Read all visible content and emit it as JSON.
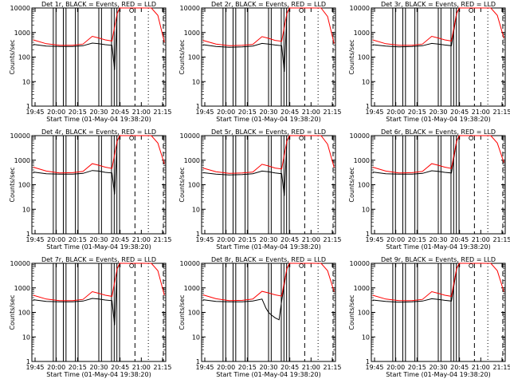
{
  "chart_data": [
    {
      "type": "line",
      "title": "Det 1r, BLACK = Events, RED = LLD",
      "xlabel": "Start Time (01-May-04 19:38:20)",
      "ylabel": "Counts/sec",
      "x_ticks": [
        "19:45",
        "20:00",
        "20:15",
        "20:30",
        "20:45",
        "21:00",
        "21:15"
      ],
      "y_ticks": [
        "1",
        "10",
        "100",
        "1000",
        "10000"
      ],
      "ylim": [
        1,
        10000
      ],
      "y_scale": "log",
      "series": [
        {
          "name": "BLACK = Events",
          "color": "#000000",
          "x": [
            0,
            0.1,
            0.2,
            0.3,
            0.38,
            0.45,
            0.5,
            0.55,
            0.6,
            0.62,
            0.64,
            0.66,
            0.68,
            0.7,
            0.72,
            0.74
          ],
          "y": [
            330,
            280,
            270,
            270,
            290,
            370,
            350,
            320,
            300,
            30,
            6000,
            10000,
            10000,
            null,
            null,
            null
          ]
        },
        {
          "name": "RED = LLD",
          "color": "#ff0000",
          "x": [
            0,
            0.1,
            0.2,
            0.3,
            0.38,
            0.45,
            0.5,
            0.55,
            0.6,
            0.64,
            0.66,
            0.68,
            0.7,
            0.9,
            0.95,
            1.0
          ],
          "y": [
            500,
            350,
            300,
            300,
            340,
            700,
            600,
            500,
            450,
            6000,
            10000,
            10000,
            10000,
            10000,
            5000,
            400
          ]
        }
      ]
    },
    {
      "type": "line",
      "title": "Det 2r, BLACK = Events, RED = LLD",
      "xlabel": "Start Time (01-May-04 19:38:20)",
      "ylabel": "Counts/sec",
      "x_ticks": [
        "19:45",
        "20:00",
        "20:15",
        "20:30",
        "20:45",
        "21:00",
        "21:15"
      ],
      "y_ticks": [
        "1",
        "10",
        "100",
        "1000",
        "10000"
      ],
      "ylim": [
        1,
        10000
      ],
      "y_scale": "log",
      "series": [
        {
          "name": "BLACK = Events",
          "color": "#000000",
          "x": [
            0,
            0.1,
            0.2,
            0.3,
            0.38,
            0.45,
            0.5,
            0.55,
            0.6,
            0.62,
            0.64,
            0.66,
            0.68,
            0.7
          ],
          "y": [
            320,
            270,
            250,
            260,
            280,
            360,
            340,
            310,
            290,
            25,
            6000,
            10000,
            10000,
            null
          ]
        },
        {
          "name": "RED = LLD",
          "color": "#ff0000",
          "x": [
            0,
            0.1,
            0.2,
            0.3,
            0.38,
            0.45,
            0.5,
            0.55,
            0.6,
            0.64,
            0.66,
            0.68,
            0.7,
            0.9,
            0.95,
            1.0
          ],
          "y": [
            480,
            340,
            290,
            300,
            330,
            680,
            580,
            480,
            440,
            6000,
            10000,
            10000,
            10000,
            10000,
            4500,
            350
          ]
        }
      ]
    },
    {
      "type": "line",
      "title": "Det 3r, BLACK = Events, RED = LLD",
      "xlabel": "Start Time (01-May-04 19:38:20)",
      "ylabel": "Counts/sec",
      "x_ticks": [
        "19:45",
        "20:00",
        "20:15",
        "20:30",
        "20:45",
        "21:00",
        "21:15"
      ],
      "y_ticks": [
        "1",
        "10",
        "100",
        "1000",
        "10000"
      ],
      "ylim": [
        1,
        10000
      ],
      "y_scale": "log",
      "series": [
        {
          "name": "BLACK = Events",
          "color": "#000000",
          "x": [
            0,
            0.1,
            0.2,
            0.3,
            0.38,
            0.45,
            0.5,
            0.55,
            0.6,
            0.64,
            0.66
          ],
          "y": [
            320,
            280,
            260,
            270,
            290,
            360,
            340,
            310,
            290,
            6000,
            10000
          ]
        },
        {
          "name": "RED = LLD",
          "color": "#ff0000",
          "x": [
            0,
            0.1,
            0.2,
            0.3,
            0.38,
            0.45,
            0.5,
            0.55,
            0.6,
            0.64,
            0.66,
            0.68,
            0.7,
            0.9,
            0.95,
            1.0
          ],
          "y": [
            500,
            350,
            300,
            300,
            340,
            700,
            600,
            500,
            450,
            6000,
            10000,
            10000,
            10000,
            10000,
            5000,
            600
          ]
        }
      ]
    },
    {
      "type": "line",
      "title": "Det 4r, BLACK = Events, RED = LLD",
      "xlabel": "Start Time (01-May-04 19:38:20)",
      "ylabel": "Counts/sec",
      "x_ticks": [
        "19:45",
        "20:00",
        "20:15",
        "20:30",
        "20:45",
        "21:00",
        "21:15"
      ],
      "y_ticks": [
        "1",
        "10",
        "100",
        "1000",
        "10000"
      ],
      "ylim": [
        1,
        10000
      ],
      "y_scale": "log",
      "series": [
        {
          "name": "BLACK = Events",
          "color": "#000000",
          "x": [
            0,
            0.1,
            0.2,
            0.3,
            0.38,
            0.45,
            0.5,
            0.55,
            0.6,
            0.62,
            0.64,
            0.66
          ],
          "y": [
            330,
            280,
            270,
            270,
            290,
            380,
            360,
            320,
            300,
            40,
            6000,
            10000
          ]
        },
        {
          "name": "RED = LLD",
          "color": "#ff0000",
          "x": [
            0,
            0.1,
            0.2,
            0.3,
            0.38,
            0.45,
            0.5,
            0.55,
            0.6,
            0.64,
            0.66,
            0.68,
            0.7,
            0.9,
            0.95,
            1.0
          ],
          "y": [
            520,
            360,
            300,
            310,
            350,
            720,
            620,
            520,
            460,
            6000,
            10000,
            10000,
            10000,
            10000,
            5000,
            700
          ]
        }
      ]
    },
    {
      "type": "line",
      "title": "Det 5r, BLACK = Events, RED = LLD",
      "xlabel": "Start Time (01-May-04 19:38:20)",
      "ylabel": "Counts/sec",
      "x_ticks": [
        "19:45",
        "20:00",
        "20:15",
        "20:30",
        "20:45",
        "21:00",
        "21:15"
      ],
      "y_ticks": [
        "1",
        "10",
        "100",
        "1000",
        "10000"
      ],
      "ylim": [
        1,
        10000
      ],
      "y_scale": "log",
      "series": [
        {
          "name": "BLACK = Events",
          "color": "#000000",
          "x": [
            0,
            0.1,
            0.2,
            0.3,
            0.38,
            0.45,
            0.5,
            0.55,
            0.6,
            0.62,
            0.64,
            0.66
          ],
          "y": [
            310,
            270,
            250,
            260,
            280,
            360,
            340,
            300,
            280,
            35,
            6000,
            10000
          ]
        },
        {
          "name": "RED = LLD",
          "color": "#ff0000",
          "x": [
            0,
            0.1,
            0.2,
            0.3,
            0.38,
            0.45,
            0.5,
            0.55,
            0.6,
            0.64,
            0.66,
            0.68,
            0.7,
            0.9,
            0.95,
            1.0
          ],
          "y": [
            480,
            340,
            290,
            300,
            330,
            680,
            580,
            480,
            440,
            6000,
            10000,
            10000,
            10000,
            10000,
            4500,
            500
          ]
        }
      ]
    },
    {
      "type": "line",
      "title": "Det 6r, BLACK = Events, RED = LLD",
      "xlabel": "Start Time (01-May-04 19:38:20)",
      "ylabel": "Counts/sec",
      "x_ticks": [
        "19:45",
        "20:00",
        "20:15",
        "20:30",
        "20:45",
        "21:00",
        "21:15"
      ],
      "y_ticks": [
        "1",
        "10",
        "100",
        "1000",
        "10000"
      ],
      "ylim": [
        1,
        10000
      ],
      "y_scale": "log",
      "series": [
        {
          "name": "BLACK = Events",
          "color": "#000000",
          "x": [
            0,
            0.1,
            0.2,
            0.3,
            0.38,
            0.45,
            0.5,
            0.55,
            0.6,
            0.64,
            0.66
          ],
          "y": [
            330,
            280,
            270,
            270,
            290,
            370,
            350,
            320,
            300,
            6000,
            10000
          ]
        },
        {
          "name": "RED = LLD",
          "color": "#ff0000",
          "x": [
            0,
            0.1,
            0.2,
            0.3,
            0.38,
            0.45,
            0.5,
            0.55,
            0.6,
            0.64,
            0.66,
            0.68,
            0.7,
            0.9,
            0.95,
            1.0
          ],
          "y": [
            520,
            360,
            300,
            310,
            350,
            720,
            620,
            520,
            460,
            6000,
            10000,
            10000,
            10000,
            10000,
            5000,
            800
          ]
        }
      ]
    },
    {
      "type": "line",
      "title": "Det 7r, BLACK = Events, RED = LLD",
      "xlabel": "Start Time (01-May-04 19:38:20)",
      "ylabel": "Counts/sec",
      "x_ticks": [
        "19:45",
        "20:00",
        "20:15",
        "20:30",
        "20:45",
        "21:00",
        "21:15"
      ],
      "y_ticks": [
        "1",
        "10",
        "100",
        "1000",
        "10000"
      ],
      "ylim": [
        1,
        10000
      ],
      "y_scale": "log",
      "series": [
        {
          "name": "BLACK = Events",
          "color": "#000000",
          "x": [
            0,
            0.1,
            0.2,
            0.3,
            0.38,
            0.45,
            0.5,
            0.55,
            0.6,
            0.62,
            0.64,
            0.66
          ],
          "y": [
            330,
            280,
            270,
            270,
            290,
            370,
            350,
            320,
            300,
            30,
            6000,
            10000
          ]
        },
        {
          "name": "RED = LLD",
          "color": "#ff0000",
          "x": [
            0,
            0.1,
            0.2,
            0.3,
            0.38,
            0.45,
            0.5,
            0.55,
            0.6,
            0.64,
            0.66,
            0.68,
            0.7,
            0.9,
            0.95,
            1.0
          ],
          "y": [
            500,
            350,
            300,
            300,
            340,
            700,
            600,
            500,
            450,
            6000,
            10000,
            10000,
            10000,
            10000,
            5000,
            500
          ]
        }
      ]
    },
    {
      "type": "line",
      "title": "Det 8r, BLACK = Events, RED = LLD",
      "xlabel": "Start Time (01-May-04 19:38:20)",
      "ylabel": "Counts/sec",
      "x_ticks": [
        "19:45",
        "20:00",
        "20:15",
        "20:30",
        "20:45",
        "21:00",
        "21:15"
      ],
      "y_ticks": [
        "1",
        "10",
        "100",
        "1000",
        "10000"
      ],
      "ylim": [
        1,
        10000
      ],
      "y_scale": "log",
      "series": [
        {
          "name": "BLACK = Events",
          "color": "#000000",
          "x": [
            0,
            0.1,
            0.2,
            0.3,
            0.38,
            0.45,
            0.48,
            0.5,
            0.52,
            0.55,
            0.58,
            0.6,
            0.64,
            0.66
          ],
          "y": [
            330,
            280,
            270,
            270,
            290,
            350,
            150,
            100,
            80,
            60,
            50,
            300,
            6000,
            10000
          ]
        },
        {
          "name": "RED = LLD",
          "color": "#ff0000",
          "x": [
            0,
            0.1,
            0.2,
            0.3,
            0.38,
            0.45,
            0.5,
            0.55,
            0.6,
            0.64,
            0.66,
            0.68,
            0.7,
            0.9,
            0.95,
            1.0
          ],
          "y": [
            520,
            360,
            300,
            310,
            350,
            720,
            620,
            520,
            460,
            6000,
            10000,
            10000,
            10000,
            10000,
            5000,
            700
          ]
        }
      ]
    },
    {
      "type": "line",
      "title": "Det 9r, BLACK = Events, RED = LLD",
      "xlabel": "Start Time (01-May-04 19:38:20)",
      "ylabel": "Counts/sec",
      "x_ticks": [
        "19:45",
        "20:00",
        "20:15",
        "20:30",
        "20:45",
        "21:00",
        "21:15"
      ],
      "y_ticks": [
        "1",
        "10",
        "100",
        "1000",
        "10000"
      ],
      "ylim": [
        1,
        10000
      ],
      "y_scale": "log",
      "series": [
        {
          "name": "BLACK = Events",
          "color": "#000000",
          "x": [
            0,
            0.1,
            0.2,
            0.3,
            0.38,
            0.45,
            0.5,
            0.55,
            0.6,
            0.64,
            0.66
          ],
          "y": [
            320,
            280,
            260,
            270,
            290,
            360,
            340,
            310,
            290,
            6000,
            10000
          ]
        },
        {
          "name": "RED = LLD",
          "color": "#ff0000",
          "x": [
            0,
            0.1,
            0.2,
            0.3,
            0.38,
            0.45,
            0.5,
            0.55,
            0.6,
            0.64,
            0.66,
            0.68,
            0.7,
            0.9,
            0.95,
            1.0
          ],
          "y": [
            500,
            350,
            300,
            300,
            340,
            700,
            600,
            500,
            450,
            6000,
            10000,
            10000,
            10000,
            10000,
            5000,
            700
          ]
        }
      ]
    }
  ]
}
